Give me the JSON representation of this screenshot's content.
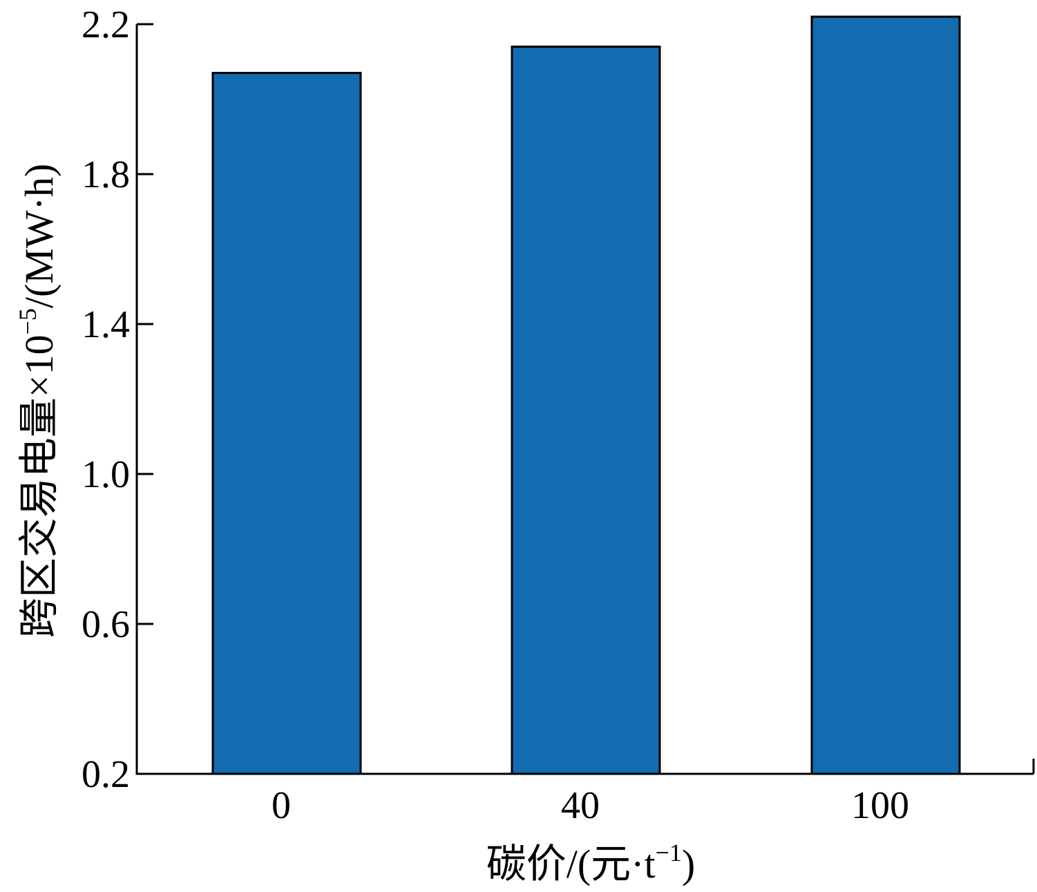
{
  "chart_data": {
    "type": "bar",
    "categories": [
      "0",
      "40",
      "100"
    ],
    "values": [
      2.07,
      2.14,
      2.22
    ],
    "ylim": [
      0.2,
      2.2
    ],
    "yticks": [
      0.2,
      0.6,
      1.0,
      1.4,
      1.8,
      2.2
    ],
    "ytick_labels": [
      "0.2",
      "0.6",
      "1.0",
      "1.4",
      "1.8",
      "2.2"
    ],
    "xlabel": {
      "main": "碳价/(元·t",
      "sup": "−1",
      "close": ")"
    },
    "ylabel": {
      "main": "跨区交易电量×10",
      "sup": "−5",
      "tail": "/(MW·h)"
    },
    "grid": false,
    "legend": "none",
    "bar_color": "#136cb0",
    "edge_color": "#000000"
  }
}
